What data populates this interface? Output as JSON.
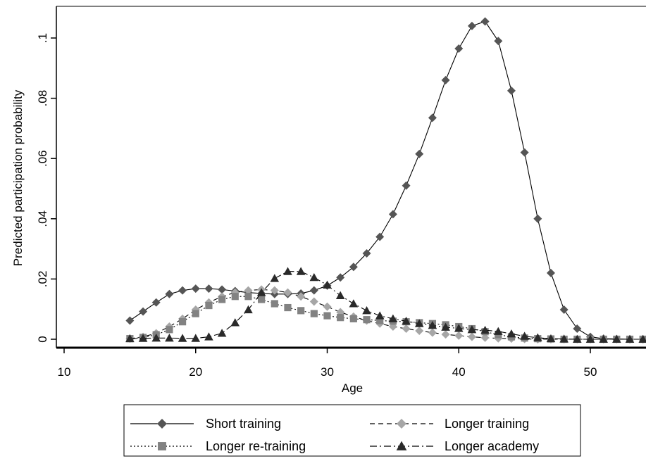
{
  "chart_data": {
    "type": "line",
    "xlabel": "Age",
    "ylabel": "Predicted participation probability",
    "xlim": [
      10,
      54
    ],
    "ylim": [
      -0.003,
      0.108
    ],
    "x_ticks": [
      10,
      20,
      30,
      40,
      50
    ],
    "y_ticks": [
      0,
      0.02,
      0.04,
      0.06,
      0.08,
      0.1
    ],
    "x_tick_labels": [
      "10",
      "20",
      "30",
      "40",
      "50"
    ],
    "y_tick_labels": [
      "0",
      ".02",
      ".04",
      ".06",
      ".08",
      ".1"
    ],
    "grid": false,
    "legend_position": "bottom",
    "x": [
      15,
      16,
      17,
      18,
      19,
      20,
      21,
      22,
      23,
      24,
      25,
      26,
      27,
      28,
      29,
      30,
      31,
      32,
      33,
      34,
      35,
      36,
      37,
      38,
      39,
      40,
      41,
      42,
      43,
      44,
      45,
      46,
      47,
      48,
      49,
      50,
      51,
      52,
      53,
      54
    ],
    "series": [
      {
        "name": "Short training",
        "marker": "diamond",
        "dash": "solid",
        "color": "#555555",
        "values": [
          0.0062,
          0.0092,
          0.0122,
          0.015,
          0.0162,
          0.0168,
          0.0168,
          0.0165,
          0.016,
          0.0155,
          0.0152,
          0.015,
          0.015,
          0.0152,
          0.0162,
          0.0178,
          0.0205,
          0.024,
          0.0285,
          0.034,
          0.0415,
          0.051,
          0.0615,
          0.0735,
          0.086,
          0.0965,
          0.104,
          0.1055,
          0.099,
          0.0825,
          0.062,
          0.04,
          0.022,
          0.0098,
          0.0035,
          0.0008,
          0.0002,
          0.0001,
          0.0,
          0.0
        ]
      },
      {
        "name": "Longer training",
        "marker": "diamond",
        "dash": "dashed",
        "color": "#a6a6a6",
        "values": [
          0.0002,
          0.0008,
          0.002,
          0.0042,
          0.0068,
          0.0098,
          0.0122,
          0.0142,
          0.0155,
          0.0162,
          0.0165,
          0.0162,
          0.0155,
          0.0142,
          0.0125,
          0.0108,
          0.009,
          0.0075,
          0.0062,
          0.0052,
          0.0042,
          0.0035,
          0.0028,
          0.0022,
          0.0016,
          0.0012,
          0.0008,
          0.0005,
          0.0003,
          0.0002,
          0.0001,
          0.0,
          0.0,
          0.0,
          0.0,
          0.0,
          0.0,
          0.0,
          0.0,
          0.0
        ]
      },
      {
        "name": "Longer re-training",
        "marker": "square",
        "dash": "dotted",
        "color": "#828282",
        "values": [
          0.0002,
          0.0006,
          0.0015,
          0.0032,
          0.0058,
          0.0085,
          0.0112,
          0.0132,
          0.0142,
          0.0142,
          0.0132,
          0.0118,
          0.0105,
          0.0095,
          0.0085,
          0.0078,
          0.0072,
          0.0068,
          0.0065,
          0.0062,
          0.006,
          0.0058,
          0.0055,
          0.0052,
          0.0048,
          0.0042,
          0.0035,
          0.0025,
          0.0015,
          0.0008,
          0.0004,
          0.0002,
          0.0001,
          0.0,
          0.0,
          0.0,
          0.0,
          0.0,
          0.0,
          0.0
        ]
      },
      {
        "name": "Longer academy",
        "marker": "triangle",
        "dash": "dashdot",
        "color": "#2a2a2a",
        "values": [
          0.0002,
          0.0003,
          0.0004,
          0.0004,
          0.0003,
          0.0003,
          0.0008,
          0.002,
          0.0055,
          0.0098,
          0.0155,
          0.0202,
          0.0225,
          0.0225,
          0.0205,
          0.018,
          0.0145,
          0.0118,
          0.0095,
          0.0078,
          0.0068,
          0.006,
          0.0052,
          0.0046,
          0.004,
          0.0036,
          0.0032,
          0.003,
          0.0026,
          0.0018,
          0.001,
          0.0005,
          0.0002,
          0.0001,
          0.0,
          0.0,
          0.0,
          0.0,
          0.0,
          0.0
        ]
      }
    ]
  }
}
